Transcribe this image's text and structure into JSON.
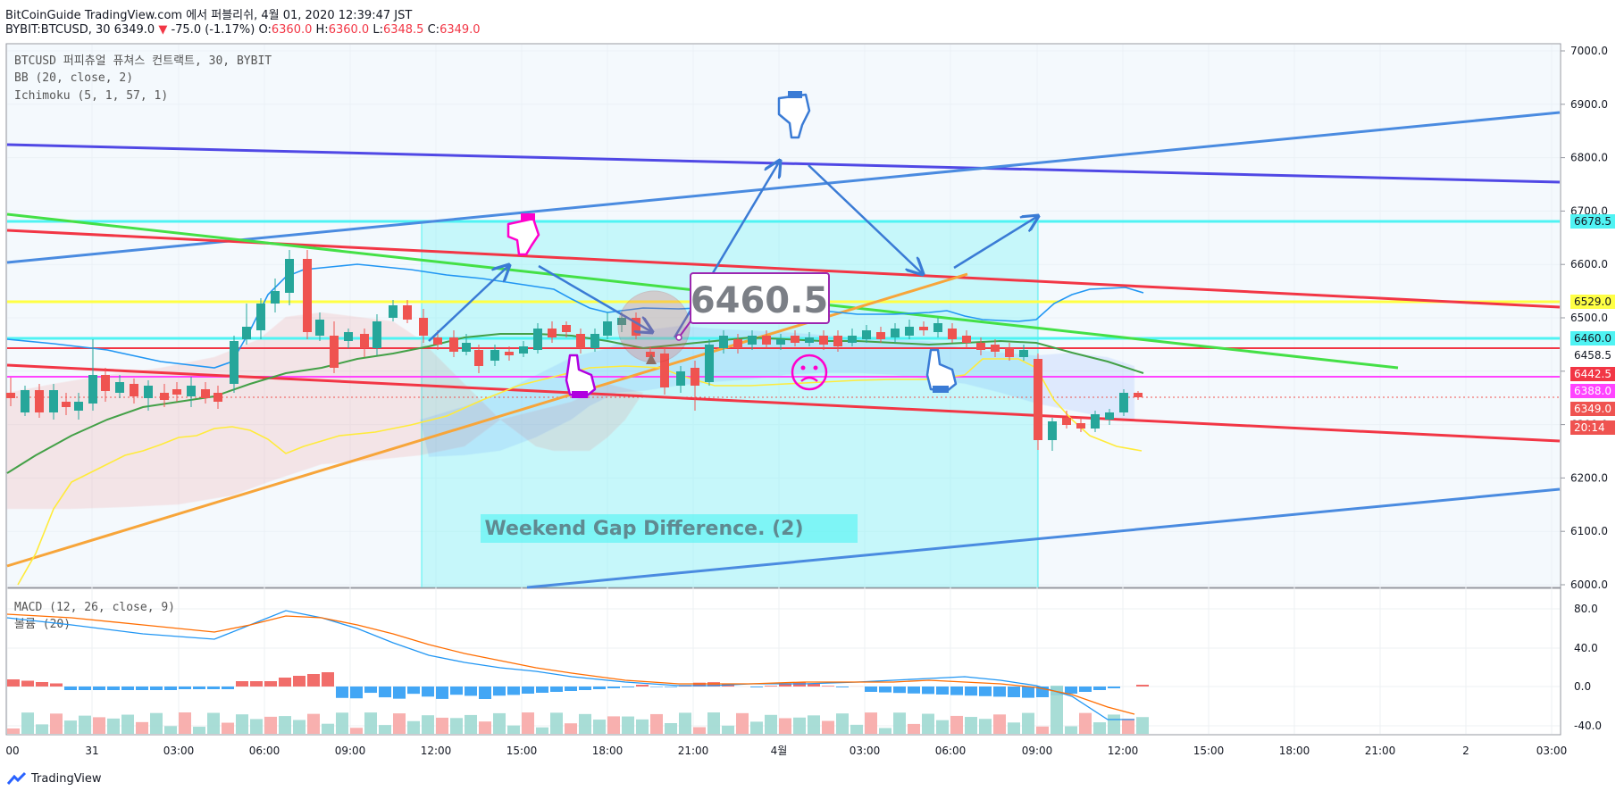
{
  "header": {
    "line1": "BitCoinGuide TradingView.com 에서 퍼블리쉬, 4월 01, 2020 12:39:47 JST",
    "symbol": "BYBIT:BTCUSD, 30 6349.0",
    "change_arrow": "▼",
    "change": "-75.0 (-1.17%)",
    "o_label": "O:",
    "o_val": "6360.0",
    "h_label": "H:",
    "h_val": "6360.0",
    "l_label": "L:",
    "l_val": "6348.5",
    "c_label": "C:",
    "c_val": "6349.0"
  },
  "legend": {
    "main": "BTCUSD 퍼피츄얼 퓨쳐스 컨트랙트, 30, BYBIT",
    "bb": "BB (20, close, 2)",
    "ichimoku": "Ichimoku (5, 1, 57, 1)",
    "macd": "MACD (12, 26, close, 9)",
    "volume": "볼륨 (20)"
  },
  "price_axis": [
    "7000.0",
    "6900.0",
    "6800.0",
    "6700.0",
    "6600.0",
    "6500.0",
    "6400.0",
    "6300.0",
    "6200.0",
    "6100.0",
    "6000.0"
  ],
  "price_tags": [
    {
      "label": "6678.5",
      "bg": "#4ff3f3",
      "fg": "#131722"
    },
    {
      "label": "6529.0",
      "bg": "#ffff44",
      "fg": "#131722"
    },
    {
      "label": "6460.0",
      "bg": "#4ff3f3",
      "fg": "#131722"
    },
    {
      "label": "6458.5",
      "bg": "#ffffff",
      "fg": "#131722"
    },
    {
      "label": "6442.5",
      "bg": "#f23645",
      "fg": "#ffffff"
    },
    {
      "label": "6388.0",
      "bg": "#ff44ff",
      "fg": "#ffffff"
    },
    {
      "label": "6349.0",
      "bg": "#ef5350",
      "fg": "#ffffff"
    },
    {
      "label": "20:14",
      "bg": "#ef5350",
      "fg": "#ffffff"
    }
  ],
  "macd_axis": [
    "80.0",
    "40.0",
    "0.0",
    "-40.0"
  ],
  "time_axis": [
    "00",
    "31",
    "03:00",
    "06:00",
    "09:00",
    "12:00",
    "15:00",
    "18:00",
    "21:00",
    "4월",
    "03:00",
    "06:00",
    "09:00",
    "12:00",
    "15:00",
    "18:00",
    "21:00",
    "2",
    "03:00"
  ],
  "annotations": {
    "price_box": "6460.5",
    "gap_label": "Weekend Gap Difference. (2)"
  },
  "footer": {
    "brand": "TradingView"
  },
  "colors": {
    "up": "#26a69a",
    "down": "#ef5350",
    "macd": "#2196f3",
    "signal": "#ff6d00",
    "cyan": "#4ff3f3",
    "yellow": "#ffff44",
    "red": "#f23645",
    "magenta": "#ff44ff"
  }
}
